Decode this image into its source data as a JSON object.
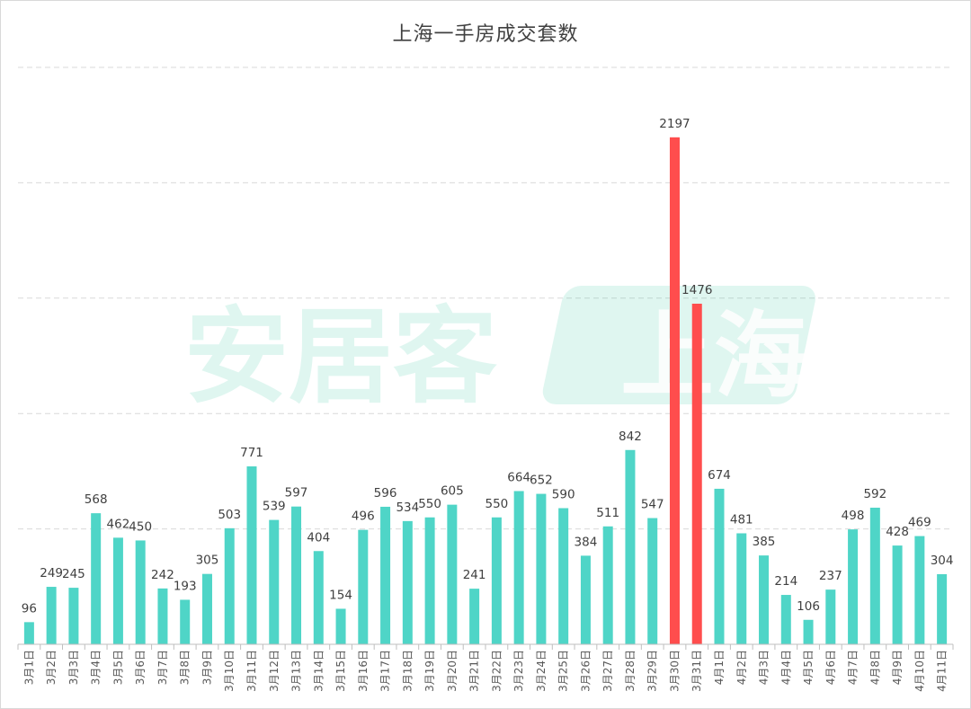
{
  "chart_data": {
    "type": "bar",
    "title": "上海一手房成交套数",
    "xlabel": "",
    "ylabel": "",
    "ylim": [
      0,
      2500
    ],
    "grid": true,
    "categories": [
      "3月1日",
      "3月2日",
      "3月3日",
      "3月4日",
      "3月5日",
      "3月6日",
      "3月7日",
      "3月8日",
      "3月9日",
      "3月10日",
      "3月11日",
      "3月12日",
      "3月13日",
      "3月14日",
      "3月15日",
      "3月16日",
      "3月17日",
      "3月18日",
      "3月19日",
      "3月20日",
      "3月21日",
      "3月22日",
      "3月23日",
      "3月24日",
      "3月25日",
      "3月26日",
      "3月27日",
      "3月28日",
      "3月29日",
      "3月30日",
      "3月31日",
      "4月1日",
      "4月2日",
      "4月3日",
      "4月4日",
      "4月5日",
      "4月6日",
      "4月7日",
      "4月8日",
      "4月9日",
      "4月10日",
      "4月11日"
    ],
    "values": [
      96,
      249,
      245,
      568,
      462,
      450,
      242,
      193,
      305,
      503,
      771,
      539,
      597,
      404,
      154,
      496,
      596,
      534,
      550,
      605,
      241,
      550,
      664,
      652,
      590,
      384,
      511,
      842,
      547,
      2197,
      1476,
      674,
      481,
      385,
      214,
      106,
      237,
      498,
      592,
      428,
      469,
      304
    ],
    "highlight_categories": [
      "3月30日",
      "3月31日"
    ],
    "colors": {
      "bar": "#4fd5c7",
      "highlight": "#ff4d4d",
      "grid": "#d9d9d9",
      "text": "#404040"
    }
  },
  "watermark": {
    "brand": "安居客",
    "city": "上海"
  }
}
